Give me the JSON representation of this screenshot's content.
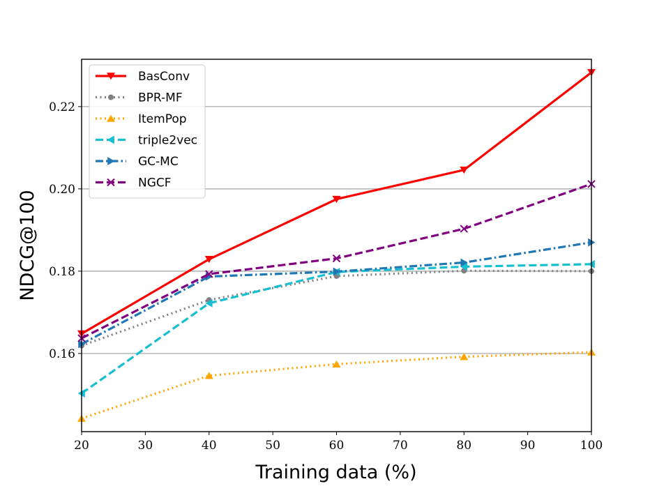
{
  "chart_data": {
    "type": "line",
    "title": "",
    "xlabel": "Training data (%)",
    "ylabel": "NDCG@100",
    "xlim": [
      20,
      100
    ],
    "ylim": [
      0.141,
      0.2315
    ],
    "xticks": [
      "20",
      "30",
      "40",
      "50",
      "60",
      "70",
      "80",
      "90",
      "100"
    ],
    "yticks": [
      "0.16",
      "0.18",
      "0.20",
      "0.22"
    ],
    "grid": "horizontal",
    "legend_position": "top-left",
    "x": [
      20,
      40,
      60,
      80,
      100
    ],
    "series": [
      {
        "name": "BasConv",
        "values": [
          0.1648,
          0.1829,
          0.1975,
          0.2046,
          0.2283
        ],
        "color": "#ff0000",
        "dash": "solid",
        "marker": "triangle-down"
      },
      {
        "name": "BPR-MF",
        "values": [
          0.1619,
          0.173,
          0.1788,
          0.1801,
          0.18
        ],
        "color": "#808080",
        "dash": "dotted",
        "marker": "circle"
      },
      {
        "name": "ItemPop",
        "values": [
          0.1442,
          0.1546,
          0.1574,
          0.1592,
          0.1603
        ],
        "color": "#ffa500",
        "dash": "dotted",
        "marker": "triangle-up"
      },
      {
        "name": "triple2vec",
        "values": [
          0.1503,
          0.1722,
          0.1798,
          0.1811,
          0.1817
        ],
        "color": "#17becf",
        "dash": "dashed",
        "marker": "triangle-left"
      },
      {
        "name": "GC-MC",
        "values": [
          0.1623,
          0.1787,
          0.1799,
          0.1821,
          0.187
        ],
        "color": "#1f77b4",
        "dash": "dashdot",
        "marker": "triangle-right"
      },
      {
        "name": "NGCF",
        "values": [
          0.1637,
          0.1793,
          0.1831,
          0.1903,
          0.2012
        ],
        "color": "#800080",
        "dash": "dashed",
        "marker": "x"
      }
    ]
  }
}
